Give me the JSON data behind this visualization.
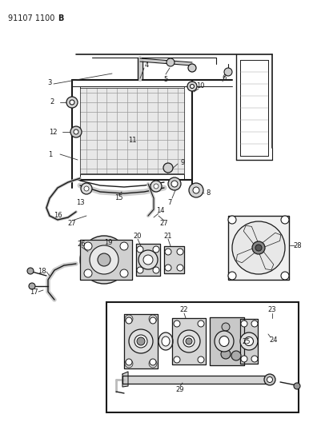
{
  "title_left": "91107 1100",
  "title_bold": "B",
  "bg_color": "#ffffff",
  "fig_width": 3.86,
  "fig_height": 5.33,
  "dpi": 100,
  "line_color": "#1a1a1a",
  "gray_light": "#cccccc",
  "gray_med": "#aaaaaa",
  "gray_dark": "#888888"
}
